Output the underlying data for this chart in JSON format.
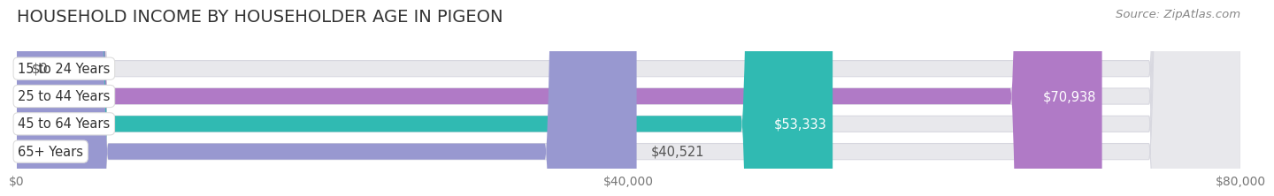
{
  "title": "HOUSEHOLD INCOME BY HOUSEHOLDER AGE IN PIGEON",
  "source": "Source: ZipAtlas.com",
  "categories": [
    "15 to 24 Years",
    "25 to 44 Years",
    "45 to 64 Years",
    "65+ Years"
  ],
  "values": [
    0,
    70938,
    53333,
    40521
  ],
  "bar_colors": [
    "#a8c8e8",
    "#b07ac6",
    "#30bab2",
    "#9898d0"
  ],
  "bar_bg_color": "#e8e8ec",
  "bar_bg_outline": "#d8d8e0",
  "xlim": [
    0,
    80000
  ],
  "xticks": [
    0,
    40000,
    80000
  ],
  "xtick_labels": [
    "$0",
    "$40,000",
    "$80,000"
  ],
  "value_labels": [
    "$0",
    "$70,938",
    "$53,333",
    "$40,521"
  ],
  "value_label_inside": [
    false,
    true,
    true,
    false
  ],
  "title_fontsize": 14,
  "label_fontsize": 10.5,
  "tick_fontsize": 10,
  "source_fontsize": 9.5,
  "background_color": "#ffffff",
  "bar_height": 0.58,
  "label_circle_colors": [
    "#7aace0",
    "#9b5bb5",
    "#2aada5",
    "#8888c0"
  ],
  "grid_color": "#cccccc"
}
